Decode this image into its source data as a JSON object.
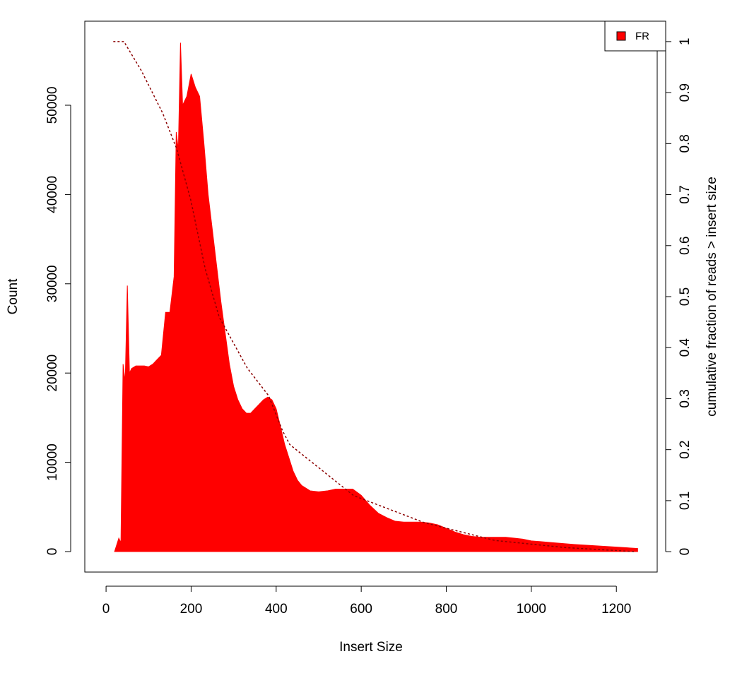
{
  "chart_data": {
    "type": "area",
    "xlabel": "Insert Size",
    "ylabel": "Count",
    "y2label": "cumulative fraction of reads > insert size",
    "xlim": [
      -50,
      1296
    ],
    "xticks": [
      0,
      200,
      400,
      600,
      800,
      1000,
      1200
    ],
    "ylim": [
      -2294,
      59415
    ],
    "yticks": [
      0,
      10000,
      20000,
      30000,
      40000,
      50000
    ],
    "y2lim": [
      -0.04,
      1.04
    ],
    "y2ticks": [
      0,
      0.1,
      0.2,
      0.3,
      0.4,
      0.5,
      0.6,
      0.7,
      0.8,
      0.9,
      1
    ],
    "legend": "topright",
    "series": [
      {
        "name": "FR",
        "type": "area",
        "color": "#ff0000",
        "x": [
          20,
          30,
          35,
          40,
          45,
          50,
          55,
          60,
          70,
          80,
          90,
          100,
          110,
          120,
          130,
          140,
          150,
          160,
          165,
          170,
          175,
          180,
          190,
          200,
          210,
          220,
          230,
          240,
          250,
          260,
          270,
          280,
          290,
          300,
          310,
          320,
          330,
          340,
          350,
          360,
          370,
          380,
          390,
          400,
          410,
          420,
          430,
          440,
          450,
          460,
          480,
          500,
          520,
          540,
          560,
          580,
          600,
          620,
          640,
          660,
          680,
          700,
          720,
          740,
          760,
          780,
          800,
          820,
          840,
          860,
          880,
          900,
          920,
          940,
          960,
          980,
          1000,
          1050,
          1100,
          1150,
          1200,
          1250
        ],
        "values": [
          0,
          1500,
          1000,
          21000,
          19000,
          29800,
          20000,
          20500,
          20800,
          20800,
          20800,
          20700,
          21000,
          21500,
          22000,
          26800,
          26800,
          30800,
          47000,
          45000,
          57000,
          50000,
          51000,
          53500,
          52000,
          51000,
          45800,
          40000,
          36000,
          32000,
          28000,
          24500,
          21000,
          18500,
          17000,
          16000,
          15500,
          15500,
          16000,
          16500,
          17000,
          17300,
          17000,
          16000,
          14000,
          12000,
          10500,
          9000,
          8000,
          7400,
          6800,
          6700,
          6800,
          7000,
          7000,
          7000,
          6300,
          5200,
          4300,
          3800,
          3400,
          3300,
          3300,
          3300,
          3200,
          3000,
          2600,
          2200,
          1900,
          1700,
          1600,
          1600,
          1600,
          1600,
          1500,
          1400,
          1200,
          1000,
          800,
          650,
          500,
          350
        ]
      },
      {
        "type": "line",
        "axis": "y2",
        "color": "#8b0000",
        "dashed": true,
        "x": [
          17,
          42,
          83,
          133,
          166,
          199,
          233,
          266,
          332,
          382,
          415,
          432,
          582,
          748,
          914,
          1080,
          1246
        ],
        "values": [
          1,
          1,
          0.943,
          0.86,
          0.79,
          0.69,
          0.555,
          0.46,
          0.36,
          0.306,
          0.237,
          0.21,
          0.11,
          0.057,
          0.022,
          0.008,
          0
        ]
      }
    ]
  }
}
